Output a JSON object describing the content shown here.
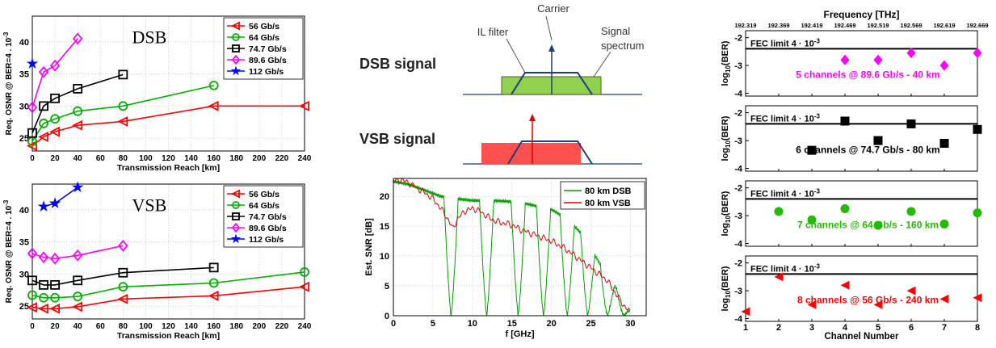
{
  "colors": {
    "s56": "#ff0000",
    "s64": "#00b000",
    "s747": "#000000",
    "s896": "#ff00ff",
    "s112": "#0000ff",
    "dsb": "#00a000",
    "vsb": "#e00000",
    "green_fill": "#92d050",
    "red_fill": "#ff5050",
    "blue_line": "#1f3d7a",
    "gray": "#7f7f7f"
  },
  "chart_data": [
    {
      "type": "line",
      "title": "DSB",
      "xlabel": "Transmission Reach [km]",
      "ylabel": "Req. OSNR @ BER=4 . 10^-3",
      "xlim": [
        0,
        240
      ],
      "ylim": [
        23,
        44
      ],
      "xticks": [
        "0",
        "20",
        "40",
        "60",
        "80",
        "100",
        "120",
        "140",
        "160",
        "180",
        "200",
        "220",
        "240"
      ],
      "yticks": [
        "25",
        "30",
        "35",
        "40"
      ],
      "grid": true,
      "legend": "top-right",
      "series": [
        {
          "name": "56 Gb/s",
          "marker": "tri-left",
          "color": "#ff0000",
          "x": [
            0,
            10,
            20,
            40,
            80,
            160,
            240
          ],
          "y": [
            23.8,
            25.2,
            26.0,
            27.0,
            27.6,
            30.0,
            30.0
          ]
        },
        {
          "name": "64 Gb/s",
          "marker": "circle",
          "color": "#00b000",
          "x": [
            0,
            10,
            20,
            40,
            80,
            160
          ],
          "y": [
            24.5,
            27.3,
            28.0,
            29.2,
            30.0,
            33.2
          ]
        },
        {
          "name": "74.7 Gb/s",
          "marker": "square",
          "color": "#000000",
          "x": [
            0,
            10,
            20,
            40,
            80
          ],
          "y": [
            25.8,
            30.0,
            31.2,
            32.7,
            34.9
          ]
        },
        {
          "name": "89.6 Gb/s",
          "marker": "diamond",
          "color": "#ff00ff",
          "x": [
            0,
            10,
            20,
            40
          ],
          "y": [
            29.8,
            35.3,
            36.3,
            40.5
          ]
        },
        {
          "name": "112 Gb/s",
          "marker": "star",
          "color": "#0000ff",
          "x": [
            0
          ],
          "y": [
            36.6
          ]
        }
      ]
    },
    {
      "type": "line",
      "title": "VSB",
      "xlabel": "Transmission Reach [km]",
      "ylabel": "Req. OSNR @ BER=4 . 10^-3",
      "xlim": [
        0,
        240
      ],
      "ylim": [
        23,
        44
      ],
      "xticks": [
        "0",
        "20",
        "40",
        "60",
        "80",
        "100",
        "120",
        "140",
        "160",
        "180",
        "200",
        "220",
        "240"
      ],
      "yticks": [
        "25",
        "30",
        "35",
        "40"
      ],
      "grid": true,
      "legend": "top-right",
      "series": [
        {
          "name": "56 Gb/s",
          "marker": "tri-left",
          "color": "#ff0000",
          "x": [
            0,
            10,
            20,
            40,
            80,
            160,
            240
          ],
          "y": [
            24.8,
            24.6,
            24.6,
            24.9,
            26.1,
            26.6,
            28.0
          ]
        },
        {
          "name": "64 Gb/s",
          "marker": "circle",
          "color": "#00b000",
          "x": [
            0,
            10,
            20,
            40,
            80,
            160,
            240
          ],
          "y": [
            26.7,
            26.3,
            26.3,
            26.5,
            28.0,
            28.6,
            30.3
          ]
        },
        {
          "name": "74.7 Gb/s",
          "marker": "square",
          "color": "#000000",
          "x": [
            0,
            10,
            20,
            40,
            80,
            160
          ],
          "y": [
            29.0,
            28.3,
            28.3,
            29.0,
            30.2,
            31.0
          ]
        },
        {
          "name": "89.6 Gb/s",
          "marker": "diamond",
          "color": "#ff00ff",
          "x": [
            0,
            10,
            20,
            40,
            80
          ],
          "y": [
            33.2,
            32.6,
            32.4,
            32.9,
            34.4
          ]
        },
        {
          "name": "112 Gb/s",
          "marker": "star",
          "color": "#0000ff",
          "x": [
            10,
            20,
            40
          ],
          "y": [
            40.5,
            41.0,
            43.5
          ]
        }
      ]
    },
    {
      "type": "line",
      "xlabel": "f [GHz]",
      "ylabel": "Est. SNR [dB]",
      "xlim": [
        0,
        32
      ],
      "ylim": [
        0,
        23
      ],
      "xticks": [
        "0",
        "5",
        "10",
        "15",
        "20",
        "25",
        "30"
      ],
      "yticks": [
        "0",
        "5",
        "10",
        "15",
        "20"
      ],
      "grid": true,
      "legend": "top-right",
      "series": [
        {
          "name": "80 km DSB",
          "color": "#00a000",
          "style": "notched",
          "nulls": [
            7.3,
            11.8,
            15.8,
            19.0,
            22.0,
            24.6,
            27.1,
            29.2
          ],
          "envelope_x": [
            0,
            2,
            4,
            6,
            8,
            10,
            12,
            14,
            16,
            18,
            20,
            22,
            24,
            26,
            28,
            30
          ],
          "envelope_y": [
            22.5,
            22,
            21,
            20,
            19.6,
            19.3,
            19.3,
            19.2,
            19,
            18.4,
            17.8,
            16.2,
            13.5,
            9,
            5,
            1
          ]
        },
        {
          "name": "80 km VSB",
          "color": "#e00000",
          "x": [
            0,
            1,
            2,
            3,
            4,
            5,
            6,
            7,
            7.5,
            8,
            9,
            10,
            11,
            12,
            13,
            14,
            15,
            16,
            17,
            18,
            19,
            20,
            21,
            22,
            23,
            24,
            25,
            26,
            27,
            28,
            29,
            30
          ],
          "y": [
            22.5,
            22.8,
            22.2,
            21.4,
            20.6,
            19.6,
            18,
            16,
            14.5,
            16,
            17.5,
            18,
            17.5,
            16.5,
            15.8,
            15.5,
            15.2,
            14.5,
            14,
            13.5,
            13,
            12.5,
            11.8,
            11,
            10,
            9,
            8,
            7,
            6,
            4,
            2,
            0.5
          ]
        }
      ]
    },
    {
      "type": "scatter",
      "title_top": "Frequency [THz]",
      "xlabel": "Channel Number",
      "ylabel": "log10(BER)",
      "freq_ticks": [
        "192.319",
        "192.369",
        "192.419",
        "192.469",
        "192.519",
        "192.569",
        "192.619",
        "192.669"
      ],
      "xticks": [
        "1",
        "2",
        "3",
        "4",
        "5",
        "6",
        "7",
        "8"
      ],
      "fec_label": "FEC limit 4 · 10^-3",
      "fec_value": -2.4,
      "panels": [
        {
          "label": "5 channels @ 89.6 Gb/s - 40 km",
          "color": "#ff00ff",
          "marker": "diamond",
          "channels": [
            4,
            5,
            6,
            7,
            8
          ],
          "y": [
            -2.8,
            -2.8,
            -2.55,
            -3.0,
            -2.55
          ]
        },
        {
          "label": "6 channels @ 74.7 Gb/s - 80 km",
          "color": "#000000",
          "marker": "square",
          "channels": [
            3,
            4,
            5,
            6,
            7,
            8
          ],
          "y": [
            -3.35,
            -2.3,
            -3.0,
            -2.4,
            -3.1,
            -2.6
          ]
        },
        {
          "label": "7 channels @ 64 Gb/s - 160 km",
          "color": "#22bb00",
          "marker": "circle",
          "channels": [
            2,
            3,
            4,
            5,
            6,
            7,
            8
          ],
          "y": [
            -2.85,
            -3.15,
            -2.75,
            -3.35,
            -2.85,
            -3.3,
            -2.9
          ]
        },
        {
          "label": "8 channels @ 56 Gb/s - 240 km",
          "color": "#ff0000",
          "marker": "tri-left",
          "channels": [
            1,
            2,
            3,
            4,
            5,
            6,
            7,
            8
          ],
          "y": [
            -3.75,
            -2.5,
            -3.5,
            -2.8,
            -3.5,
            -3.0,
            -3.3,
            -3.25
          ]
        }
      ],
      "ylim": [
        -4.1,
        -1.75
      ],
      "yticks": [
        "-2",
        "-3",
        "-4"
      ]
    }
  ],
  "diagram": {
    "carrier": "Carrier",
    "il_filter": "IL filter",
    "signal_spectrum_1": "Signal",
    "signal_spectrum_2": "spectrum",
    "dsb_signal": "DSB signal",
    "vsb_signal": "VSB signal"
  }
}
